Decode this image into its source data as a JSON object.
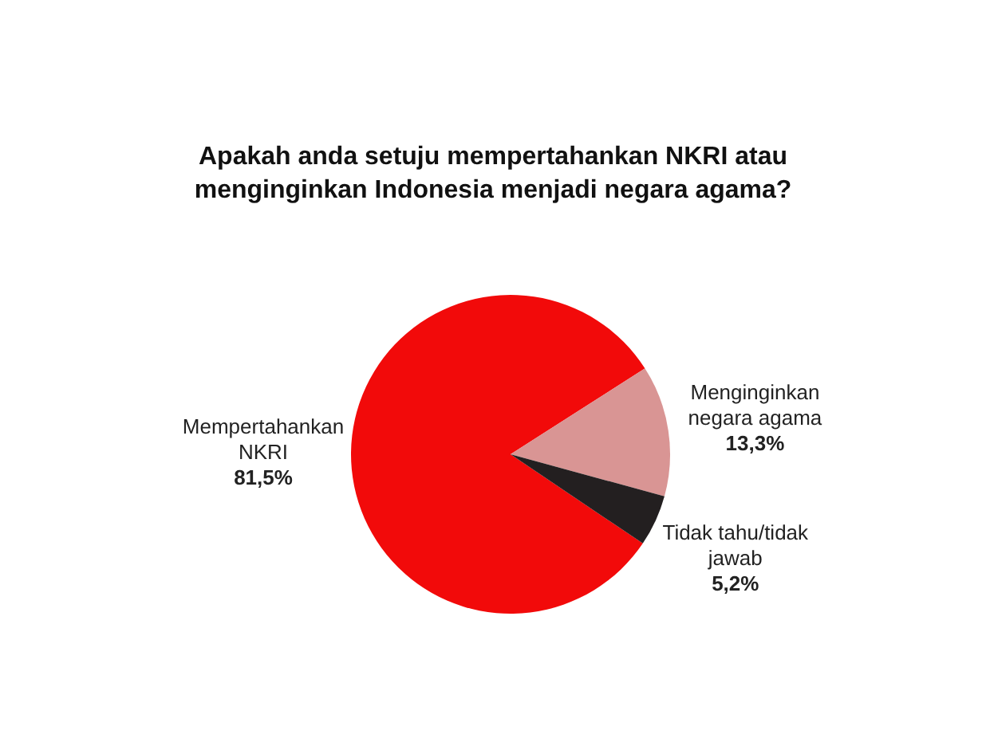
{
  "chart_data": {
    "type": "pie",
    "title": "Apakah anda setuju mempertahankan NKRI atau menginginkan Indonesia menjadi negara agama?",
    "categories": [
      "Mempertahankan NKRI",
      "Menginginkan negara agama",
      "Tidak tahu/tidak jawab"
    ],
    "values": [
      81.5,
      13.3,
      5.2
    ],
    "colors": [
      "#f20a0a",
      "#d99594",
      "#231f20"
    ],
    "value_labels": [
      "81,5%",
      "13,3%",
      "5,2%"
    ]
  }
}
